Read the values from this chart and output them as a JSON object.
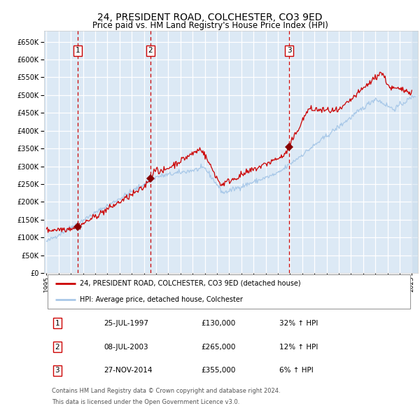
{
  "title": "24, PRESIDENT ROAD, COLCHESTER, CO3 9ED",
  "subtitle": "Price paid vs. HM Land Registry's House Price Index (HPI)",
  "title_fontsize": 10,
  "subtitle_fontsize": 8.5,
  "bg_color": "#dce9f5",
  "grid_color": "#ffffff",
  "ylim": [
    0,
    680000
  ],
  "yticks": [
    0,
    50000,
    100000,
    150000,
    200000,
    250000,
    300000,
    350000,
    400000,
    450000,
    500000,
    550000,
    600000,
    650000
  ],
  "xlim_start": 1994.8,
  "xlim_end": 2025.5,
  "xtick_years": [
    1995,
    1996,
    1997,
    1998,
    1999,
    2000,
    2001,
    2002,
    2003,
    2004,
    2005,
    2006,
    2007,
    2008,
    2009,
    2010,
    2011,
    2012,
    2013,
    2014,
    2015,
    2016,
    2017,
    2018,
    2019,
    2020,
    2021,
    2022,
    2023,
    2024,
    2025
  ],
  "hpi_color": "#a8c8e8",
  "price_color": "#cc0000",
  "sale_marker_color": "#880000",
  "dashed_line_color": "#cc0000",
  "legend_label_price": "24, PRESIDENT ROAD, COLCHESTER, CO3 9ED (detached house)",
  "legend_label_hpi": "HPI: Average price, detached house, Colchester",
  "sales": [
    {
      "num": 1,
      "date": 1997.56,
      "price": 130000,
      "date_str": "25-JUL-1997",
      "pct": "32%",
      "dir": "↑"
    },
    {
      "num": 2,
      "date": 2003.52,
      "price": 265000,
      "date_str": "08-JUL-2003",
      "pct": "12%",
      "dir": "↑"
    },
    {
      "num": 3,
      "date": 2014.92,
      "price": 355000,
      "date_str": "27-NOV-2014",
      "pct": "6%",
      "dir": "↑"
    }
  ],
  "footnote1": "Contains HM Land Registry data © Crown copyright and database right 2024.",
  "footnote2": "This data is licensed under the Open Government Licence v3.0."
}
